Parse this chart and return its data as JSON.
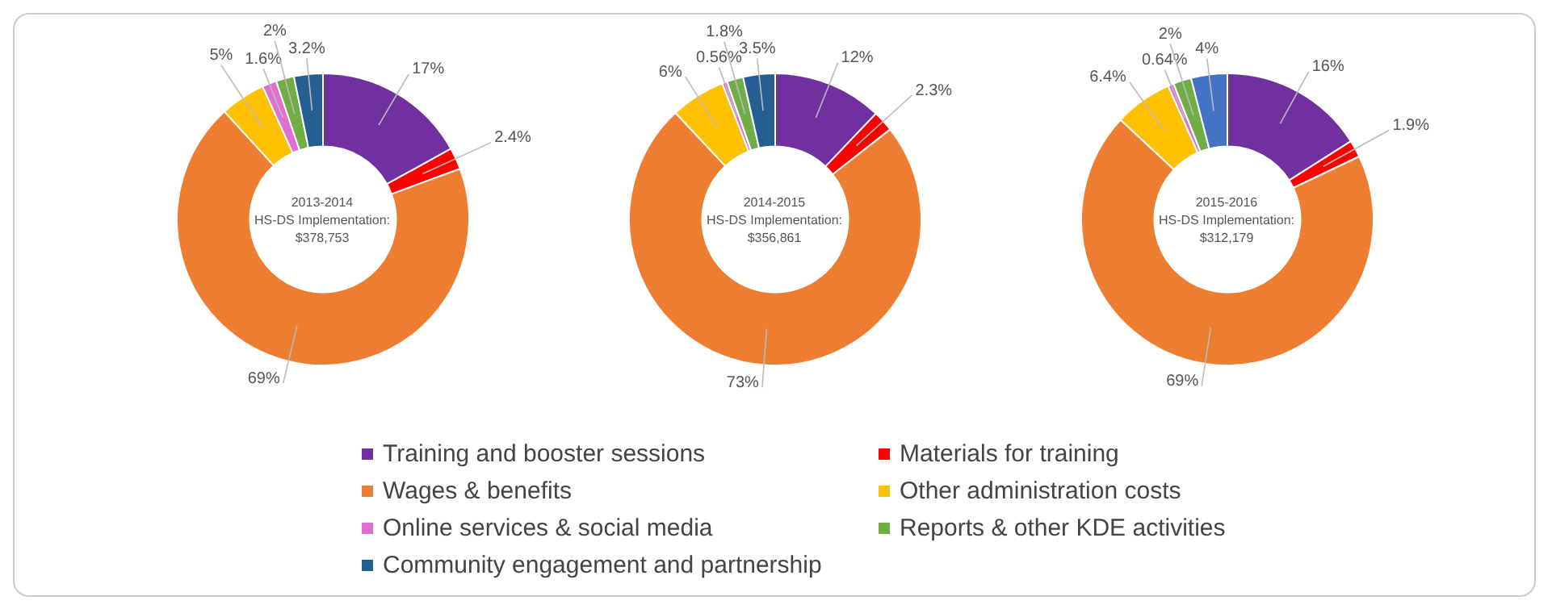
{
  "chart_data": [
    {
      "type": "donut",
      "annotations": [
        "2013-2014",
        "HS-DS Implementation:",
        "$378,753"
      ],
      "categories": [
        "Training and booster sessions",
        "Materials for training",
        "Wages & benefits",
        "Other administration costs",
        "Online services & social media",
        "Reports & other KDE activities",
        "Community engagement and partnership"
      ],
      "values": [
        17,
        2.4,
        69,
        5,
        1.6,
        2,
        3.2
      ],
      "value_labels": [
        "17%",
        "2.4%",
        "69%",
        "5%",
        "1.6%",
        "2%",
        "3.2%"
      ],
      "colors": [
        "#7030a0",
        "#ff0000",
        "#ed7d31",
        "#ffc000",
        "#e06fd0",
        "#70ad47",
        "#255e91"
      ],
      "legend": "bottom"
    },
    {
      "type": "donut",
      "annotations": [
        "2014-2015",
        "HS-DS Implementation:",
        "$356,861"
      ],
      "categories": [
        null,
        null,
        null,
        null,
        null,
        null,
        null
      ],
      "values": [
        12,
        2.3,
        73,
        6,
        0.56,
        1.8,
        3.5
      ],
      "value_labels": [
        "12%",
        "2.3%",
        "73%",
        "6%",
        "0.56%",
        "1.8%",
        "3.5%"
      ],
      "colors": [
        "#7030a0",
        "#ff0000",
        "#ed7d31",
        "#ffc000",
        "#e06fd0",
        "#70ad47",
        "#255e91"
      ]
    },
    {
      "type": "donut",
      "annotations": [
        "2015-2016",
        "HS-DS Implementation:",
        "$312,179"
      ],
      "categories": [
        null,
        null,
        null,
        null,
        null,
        null,
        null
      ],
      "values": [
        16,
        1.9,
        69,
        6.4,
        0.64,
        2,
        4
      ],
      "value_labels": [
        "16%",
        "1.9%",
        "69%",
        "6.4%",
        "0.64%",
        "2%",
        "4%"
      ],
      "colors": [
        "#7030a0",
        "#ff0000",
        "#ed7d31",
        "#ffc000",
        "#e06fd0",
        "#70ad47",
        "#4472c4"
      ]
    }
  ]
}
